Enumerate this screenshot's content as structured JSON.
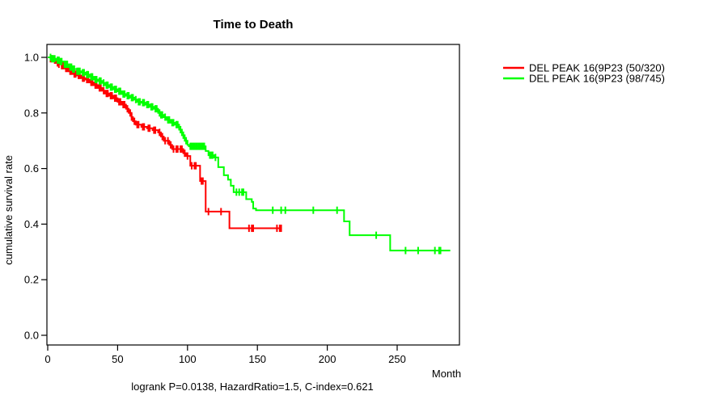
{
  "figure": {
    "title": "Time to Death",
    "x_axis_label": "Month",
    "y_axis_label": "cumulative survival rate",
    "stats_annotation": "logrank P=0.0138, HazardRatio=1.5, C-index=0.621"
  },
  "chart_data": {
    "type": "line",
    "subtype": "kaplan-meier-step-survival",
    "title": "Time to Death",
    "xlabel": "Month",
    "ylabel": "cumulative survival rate",
    "xlim": [
      0,
      295
    ],
    "ylim": [
      0.0,
      1.0
    ],
    "x_ticks": [
      0,
      50,
      100,
      150,
      200,
      250
    ],
    "y_ticks": [
      0.0,
      0.2,
      0.4,
      0.6,
      0.8,
      1.0
    ],
    "grid": false,
    "legend_position": "right-outside-top",
    "stats_annotation": "logrank P=0.0138, HazardRatio=1.5, C-index=0.621",
    "series": [
      {
        "name": "DEL PEAK 16(9P23 (50/320)",
        "color": "#FF0000",
        "end_month": 167,
        "points": [
          [
            0,
            1.0
          ],
          [
            2,
            0.995
          ],
          [
            4,
            0.99
          ],
          [
            6,
            0.98
          ],
          [
            8,
            0.975
          ],
          [
            10,
            0.97
          ],
          [
            12,
            0.96
          ],
          [
            15,
            0.95
          ],
          [
            18,
            0.94
          ],
          [
            21,
            0.935
          ],
          [
            24,
            0.925
          ],
          [
            27,
            0.92
          ],
          [
            30,
            0.91
          ],
          [
            33,
            0.9
          ],
          [
            36,
            0.89
          ],
          [
            39,
            0.88
          ],
          [
            41,
            0.87
          ],
          [
            44,
            0.862
          ],
          [
            47,
            0.853
          ],
          [
            50,
            0.84
          ],
          [
            53,
            0.83
          ],
          [
            56,
            0.815
          ],
          [
            58,
            0.8
          ],
          [
            60,
            0.785
          ],
          [
            61,
            0.77
          ],
          [
            63,
            0.758
          ],
          [
            67,
            0.75
          ],
          [
            71,
            0.745
          ],
          [
            75,
            0.738
          ],
          [
            79,
            0.73
          ],
          [
            81,
            0.715
          ],
          [
            83,
            0.7
          ],
          [
            87,
            0.685
          ],
          [
            89,
            0.67
          ],
          [
            97,
            0.655
          ],
          [
            99,
            0.645
          ],
          [
            102,
            0.61
          ],
          [
            109,
            0.555
          ],
          [
            113,
            0.445
          ],
          [
            130,
            0.385
          ]
        ],
        "censor_months": [
          2,
          3,
          5,
          7,
          8,
          10,
          11,
          13,
          14,
          16,
          17,
          19,
          20,
          22,
          23,
          25,
          26,
          28,
          29,
          31,
          32,
          34,
          35,
          37,
          38,
          40,
          42,
          43,
          45,
          46,
          48,
          49,
          51,
          52,
          54,
          55,
          57,
          59,
          60,
          62,
          64,
          65,
          68,
          69,
          72,
          73,
          76,
          77,
          80,
          82,
          84,
          86,
          88,
          90,
          92,
          93,
          95,
          96,
          98,
          100,
          103,
          105,
          106,
          110,
          111,
          115,
          124,
          144,
          146,
          147,
          164,
          166,
          167
        ]
      },
      {
        "name": "DEL PEAK 16(9P23 (98/745)",
        "color": "#00FF00",
        "end_month": 288,
        "points": [
          [
            0,
            1.0
          ],
          [
            3,
            0.995
          ],
          [
            6,
            0.99
          ],
          [
            9,
            0.985
          ],
          [
            12,
            0.975
          ],
          [
            15,
            0.965
          ],
          [
            18,
            0.958
          ],
          [
            21,
            0.95
          ],
          [
            24,
            0.945
          ],
          [
            27,
            0.938
          ],
          [
            30,
            0.93
          ],
          [
            33,
            0.92
          ],
          [
            36,
            0.915
          ],
          [
            39,
            0.908
          ],
          [
            41,
            0.9
          ],
          [
            44,
            0.893
          ],
          [
            47,
            0.885
          ],
          [
            50,
            0.878
          ],
          [
            53,
            0.868
          ],
          [
            56,
            0.862
          ],
          [
            59,
            0.855
          ],
          [
            62,
            0.848
          ],
          [
            64,
            0.84
          ],
          [
            67,
            0.837
          ],
          [
            70,
            0.83
          ],
          [
            73,
            0.822
          ],
          [
            76,
            0.815
          ],
          [
            79,
            0.8
          ],
          [
            81,
            0.793
          ],
          [
            83,
            0.785
          ],
          [
            85,
            0.775
          ],
          [
            88,
            0.765
          ],
          [
            91,
            0.758
          ],
          [
            94,
            0.74
          ],
          [
            96,
            0.72
          ],
          [
            98,
            0.7
          ],
          [
            100,
            0.685
          ],
          [
            101,
            0.68
          ],
          [
            113,
            0.663
          ],
          [
            115,
            0.648
          ],
          [
            119,
            0.64
          ],
          [
            122,
            0.605
          ],
          [
            126,
            0.576
          ],
          [
            129,
            0.56
          ],
          [
            131,
            0.538
          ],
          [
            133,
            0.515
          ],
          [
            142,
            0.49
          ],
          [
            146,
            0.48
          ],
          [
            147,
            0.456
          ],
          [
            149,
            0.45
          ],
          [
            212,
            0.41
          ],
          [
            216,
            0.36
          ],
          [
            245,
            0.305
          ]
        ],
        "censor_months": [
          2,
          3,
          4,
          5,
          7,
          8,
          9,
          10,
          12,
          13,
          14,
          16,
          17,
          18,
          19,
          21,
          22,
          23,
          25,
          26,
          28,
          29,
          31,
          32,
          34,
          35,
          37,
          38,
          40,
          42,
          43,
          45,
          46,
          48,
          49,
          51,
          52,
          54,
          55,
          57,
          58,
          60,
          61,
          63,
          65,
          66,
          68,
          69,
          71,
          72,
          74,
          75,
          77,
          78,
          80,
          81,
          82,
          84,
          86,
          87,
          89,
          90,
          92,
          93,
          95,
          97,
          99,
          102,
          103,
          104,
          105,
          106,
          107,
          108,
          109,
          110,
          111,
          112,
          116,
          117,
          118,
          120,
          135,
          137,
          139,
          140,
          161,
          167,
          170,
          190,
          207,
          235,
          256,
          265,
          277,
          280,
          281
        ]
      }
    ]
  },
  "legend": {
    "items": [
      {
        "label": "DEL PEAK 16(9P23 (50/320)",
        "color": "#FF0000"
      },
      {
        "label": "DEL PEAK 16(9P23 (98/745)",
        "color": "#00FF00"
      }
    ]
  }
}
